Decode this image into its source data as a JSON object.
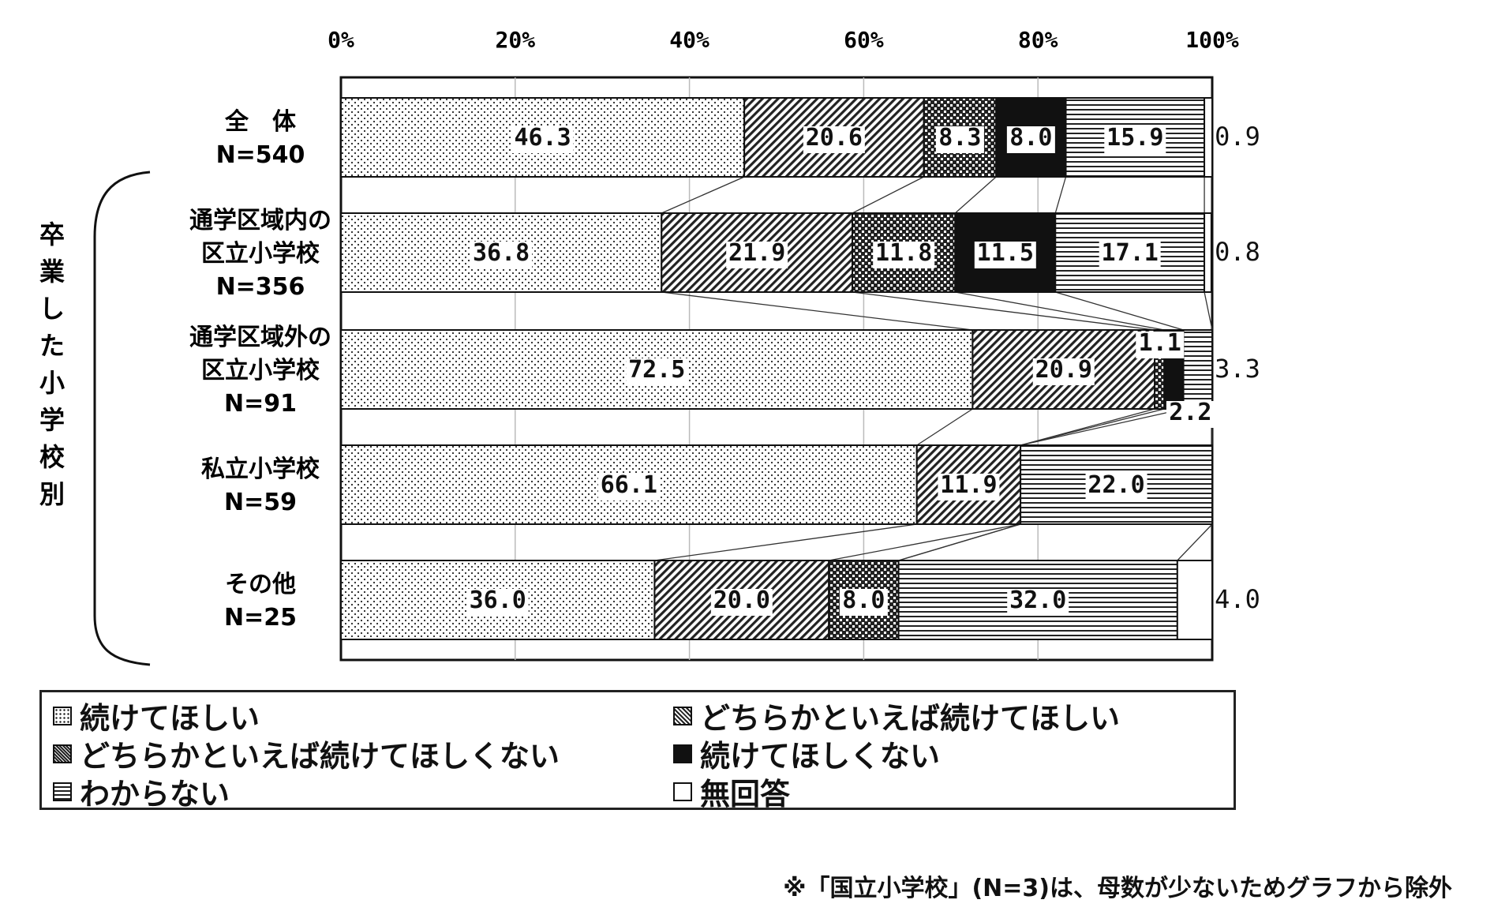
{
  "chart_data": {
    "type": "bar",
    "orientation": "horizontal",
    "stacked": true,
    "x_ticks": [
      "0%",
      "20%",
      "40%",
      "60%",
      "80%",
      "100%"
    ],
    "xlim": [
      0,
      100
    ],
    "group_label": "卒業した小学校別",
    "categories": [
      {
        "name": "全　体",
        "n": "N=540"
      },
      {
        "name": "通学区域内の\n区立小学校",
        "n": "N=356"
      },
      {
        "name": "通学区域外の\n区立小学校",
        "n": "N=91"
      },
      {
        "name": "私立小学校",
        "n": "N=59"
      },
      {
        "name": "その他",
        "n": "N=25"
      }
    ],
    "series": [
      {
        "name": "続けてほしい",
        "pattern": "dots",
        "values": [
          46.3,
          36.8,
          72.5,
          66.1,
          36.0
        ]
      },
      {
        "name": "どちらかといえば続けてほしい",
        "pattern": "diag",
        "values": [
          20.6,
          21.9,
          20.9,
          11.9,
          20.0
        ]
      },
      {
        "name": "どちらかといえば続けてほしくない",
        "pattern": "checker",
        "values": [
          8.3,
          11.8,
          1.1,
          0,
          8.0
        ]
      },
      {
        "name": "続けてほしくない",
        "pattern": "solid",
        "values": [
          8.0,
          11.5,
          2.2,
          0,
          0
        ]
      },
      {
        "name": "わからない",
        "pattern": "hlines",
        "values": [
          15.9,
          17.1,
          3.3,
          22.0,
          32.0
        ]
      },
      {
        "name": "無回答",
        "pattern": "empty",
        "values": [
          0.9,
          0.8,
          0,
          0,
          4.0
        ]
      }
    ],
    "labels": [
      [
        "46.3",
        "20.6",
        "8.3",
        "8.0",
        "15.9",
        "0.9"
      ],
      [
        "36.8",
        "21.9",
        "11.8",
        "11.5",
        "17.1",
        "0.8"
      ],
      [
        "72.5",
        "20.9",
        "1.1",
        "2.2",
        "3.3",
        ""
      ],
      [
        "66.1",
        "11.9",
        "",
        "",
        "22.0",
        ""
      ],
      [
        "36.0",
        "20.0",
        "8.0",
        "",
        "32.0",
        "4.0"
      ]
    ],
    "colors": {
      "line": "#111111",
      "fill_black": "#111111",
      "background": "#ffffff"
    }
  },
  "legend": [
    {
      "label": "続けてほしい",
      "icon": "dots-swatch"
    },
    {
      "label": "どちらかといえば続けてほしい",
      "icon": "diag-swatch"
    },
    {
      "label": "どちらかといえば続けてほしくない",
      "icon": "checker-swatch"
    },
    {
      "label": "続けてほしくない",
      "icon": "solid-swatch"
    },
    {
      "label": "わからない",
      "icon": "hlines-swatch"
    },
    {
      "label": "無回答",
      "icon": "empty-swatch"
    }
  ],
  "footnote": "※「国立小学校」(N=3)は、母数が少ないためグラフから除外"
}
